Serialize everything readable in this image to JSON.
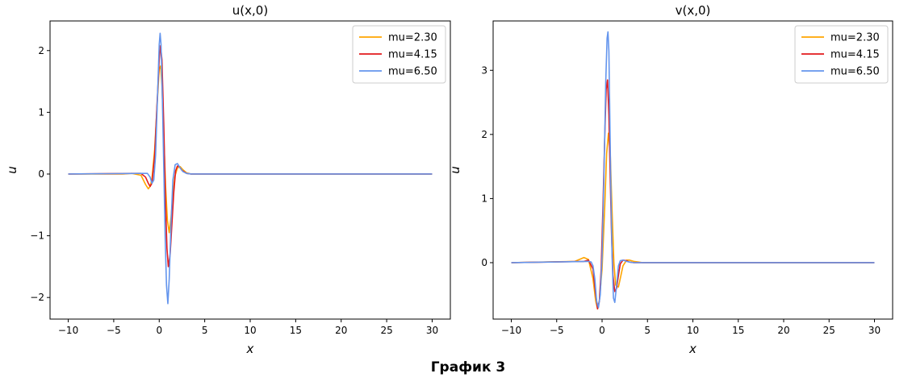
{
  "caption": "График 3",
  "colors": {
    "orange": "#ffa500",
    "red": "#e31a1c",
    "blue": "#6495ed"
  },
  "chart_data": [
    {
      "type": "line",
      "title": "u(x,0)",
      "xlabel": "x",
      "ylabel": "u",
      "xlim": [
        -12,
        32
      ],
      "ylim": [
        -2.35,
        2.48
      ],
      "xticks": [
        -10,
        -5,
        0,
        5,
        10,
        15,
        20,
        25,
        30
      ],
      "xtick_labels": [
        "−10",
        "−5",
        "0",
        "5",
        "10",
        "15",
        "20",
        "25",
        "30"
      ],
      "yticks": [
        -2,
        -1,
        0,
        1,
        2
      ],
      "ytick_labels": [
        "−2",
        "−1",
        "0",
        "1",
        "2"
      ],
      "grid": false,
      "legend": "top-right",
      "series": [
        {
          "name": "mu=2.30",
          "color": "#ffa500",
          "x": [
            -10,
            -4,
            -3,
            -2,
            -1.5,
            -1.2,
            -1.0,
            -0.8,
            -0.5,
            -0.2,
            0,
            0.15,
            0.3,
            0.5,
            0.7,
            0.9,
            1.1,
            1.3,
            1.5,
            1.7,
            2.0,
            2.3,
            2.6,
            3.0,
            3.5,
            4.0,
            5,
            30
          ],
          "y": [
            0,
            0,
            0.01,
            -0.02,
            -0.17,
            -0.24,
            -0.2,
            -0.08,
            0.4,
            1.2,
            1.7,
            1.75,
            1.45,
            0.6,
            -0.2,
            -0.75,
            -0.95,
            -0.7,
            -0.35,
            -0.05,
            0.1,
            0.12,
            0.07,
            0.02,
            0,
            0,
            0,
            0
          ]
        },
        {
          "name": "mu=4.15",
          "color": "#e31a1c",
          "x": [
            -10,
            -3,
            -2,
            -1.5,
            -1.2,
            -1.0,
            -0.8,
            -0.5,
            -0.25,
            0,
            0.15,
            0.3,
            0.5,
            0.7,
            0.85,
            1.0,
            1.2,
            1.4,
            1.6,
            1.8,
            2.0,
            2.2,
            2.5,
            3.0,
            3.5,
            4,
            30
          ],
          "y": [
            0,
            0.01,
            0.01,
            -0.05,
            -0.15,
            -0.2,
            -0.15,
            0.3,
            1.1,
            1.85,
            2.08,
            1.85,
            0.8,
            -0.5,
            -1.2,
            -1.5,
            -1.3,
            -0.8,
            -0.3,
            0.05,
            0.13,
            0.12,
            0.06,
            0.01,
            0,
            0,
            0
          ]
        },
        {
          "name": "mu=6.50",
          "color": "#6495ed",
          "x": [
            -10,
            -2,
            -1.3,
            -1.0,
            -0.8,
            -0.6,
            -0.4,
            -0.2,
            0,
            0.1,
            0.2,
            0.35,
            0.5,
            0.65,
            0.8,
            0.95,
            1.1,
            1.3,
            1.5,
            1.75,
            2.0,
            2.3,
            2.6,
            3.0,
            3.5,
            30
          ],
          "y": [
            0,
            0.01,
            0.01,
            -0.05,
            -0.15,
            -0.1,
            0.3,
            1.2,
            2.1,
            2.28,
            2.1,
            1.2,
            0.1,
            -1.0,
            -1.8,
            -2.1,
            -1.7,
            -0.8,
            -0.1,
            0.15,
            0.17,
            0.1,
            0.04,
            0.01,
            0,
            0
          ]
        }
      ]
    },
    {
      "type": "line",
      "title": "v(x,0)",
      "xlabel": "x",
      "ylabel": "u",
      "xlim": [
        -12,
        32
      ],
      "ylim": [
        -0.88,
        3.77
      ],
      "xticks": [
        -10,
        -5,
        0,
        5,
        10,
        15,
        20,
        25,
        30
      ],
      "xtick_labels": [
        "−10",
        "−5",
        "0",
        "5",
        "10",
        "15",
        "20",
        "25",
        "30"
      ],
      "yticks": [
        0,
        1,
        2,
        3
      ],
      "ytick_labels": [
        "0",
        "1",
        "2",
        "3"
      ],
      "grid": false,
      "legend": "top-right",
      "series": [
        {
          "name": "mu=2.30",
          "color": "#ffa500",
          "x": [
            -10,
            -3,
            -2.5,
            -2.0,
            -1.5,
            -1.0,
            -0.7,
            -0.5,
            -0.3,
            0,
            0.3,
            0.5,
            0.7,
            0.9,
            1.1,
            1.3,
            1.5,
            1.8,
            2.0,
            2.3,
            2.7,
            3.0,
            3.5,
            4.0,
            4.5,
            5,
            30
          ],
          "y": [
            0,
            0.02,
            0.05,
            0.08,
            0.05,
            -0.25,
            -0.6,
            -0.72,
            -0.6,
            -0.1,
            0.9,
            1.7,
            2.02,
            1.7,
            0.8,
            0.0,
            -0.35,
            -0.38,
            -0.25,
            -0.05,
            0.04,
            0.04,
            0.02,
            0.01,
            0,
            0,
            0
          ]
        },
        {
          "name": "mu=4.15",
          "color": "#e31a1c",
          "x": [
            -10,
            -2.0,
            -1.5,
            -1.0,
            -0.7,
            -0.5,
            -0.3,
            -0.1,
            0.1,
            0.3,
            0.45,
            0.6,
            0.75,
            0.9,
            1.05,
            1.2,
            1.4,
            1.6,
            1.8,
            2.0,
            2.3,
            2.7,
            3.0,
            3.5,
            30
          ],
          "y": [
            0,
            0.02,
            0.04,
            -0.1,
            -0.5,
            -0.72,
            -0.6,
            -0.1,
            0.9,
            2.0,
            2.7,
            2.85,
            2.3,
            1.3,
            0.4,
            -0.2,
            -0.45,
            -0.4,
            -0.2,
            -0.02,
            0.04,
            0.03,
            0.01,
            0,
            0
          ]
        },
        {
          "name": "mu=6.50",
          "color": "#6495ed",
          "x": [
            -10,
            -1.5,
            -1.2,
            -1.0,
            -0.8,
            -0.6,
            -0.4,
            -0.2,
            0,
            0.2,
            0.4,
            0.55,
            0.65,
            0.75,
            0.85,
            0.95,
            1.1,
            1.25,
            1.4,
            1.6,
            1.8,
            2.0,
            2.3,
            2.7,
            3.0,
            3.5,
            30
          ],
          "y": [
            0,
            0.02,
            0.01,
            -0.05,
            -0.25,
            -0.6,
            -0.7,
            -0.5,
            0.1,
            1.3,
            2.8,
            3.5,
            3.6,
            3.3,
            2.3,
            1.3,
            0.1,
            -0.55,
            -0.62,
            -0.35,
            -0.05,
            0.03,
            0.04,
            0.02,
            0.01,
            0,
            0
          ]
        }
      ]
    }
  ]
}
